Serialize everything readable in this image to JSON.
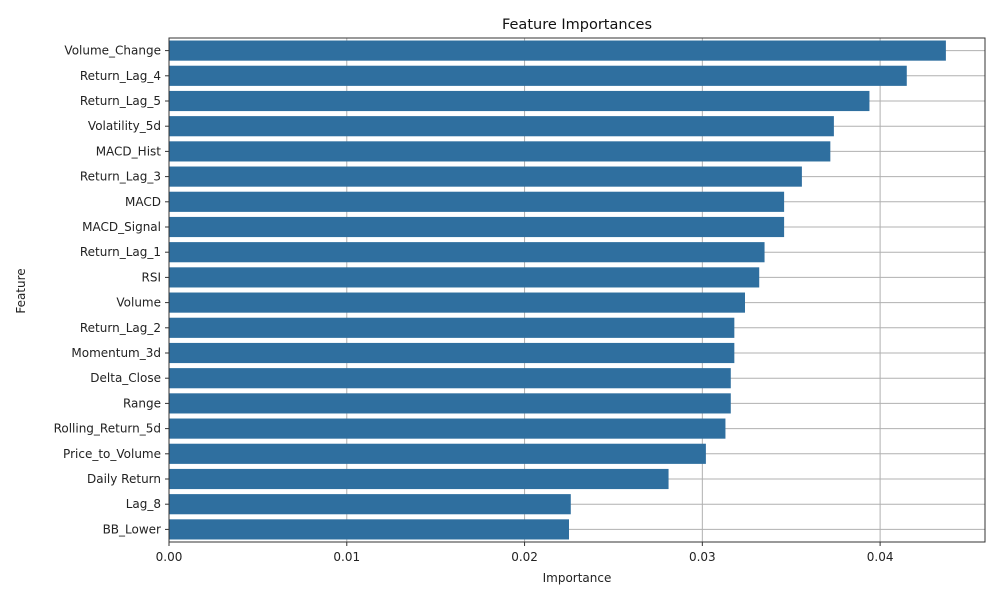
{
  "chart_data": {
    "type": "bar",
    "orientation": "horizontal",
    "title": "Feature Importances",
    "xlabel": "Importance",
    "ylabel": "Feature",
    "xlim": [
      0,
      0.0459
    ],
    "x_ticks": [
      0.0,
      0.01,
      0.02,
      0.03,
      0.04
    ],
    "x_tick_labels": [
      "0.00",
      "0.01",
      "0.02",
      "0.03",
      "0.04"
    ],
    "grid": true,
    "bar_color": "#2f6f9f",
    "categories": [
      "Volume_Change",
      "Return_Lag_4",
      "Return_Lag_5",
      "Volatility_5d",
      "MACD_Hist",
      "Return_Lag_3",
      "MACD",
      "MACD_Signal",
      "Return_Lag_1",
      "RSI",
      "Volume",
      "Return_Lag_2",
      "Momentum_3d",
      "Delta_Close",
      "Range",
      "Rolling_Return_5d",
      "Price_to_Volume",
      "Daily Return",
      "Lag_8",
      "BB_Lower"
    ],
    "values": [
      0.0437,
      0.0415,
      0.0394,
      0.0374,
      0.0372,
      0.0356,
      0.0346,
      0.0346,
      0.0335,
      0.0332,
      0.0324,
      0.0318,
      0.0318,
      0.0316,
      0.0316,
      0.0313,
      0.0302,
      0.0281,
      0.0226,
      0.0225
    ]
  }
}
